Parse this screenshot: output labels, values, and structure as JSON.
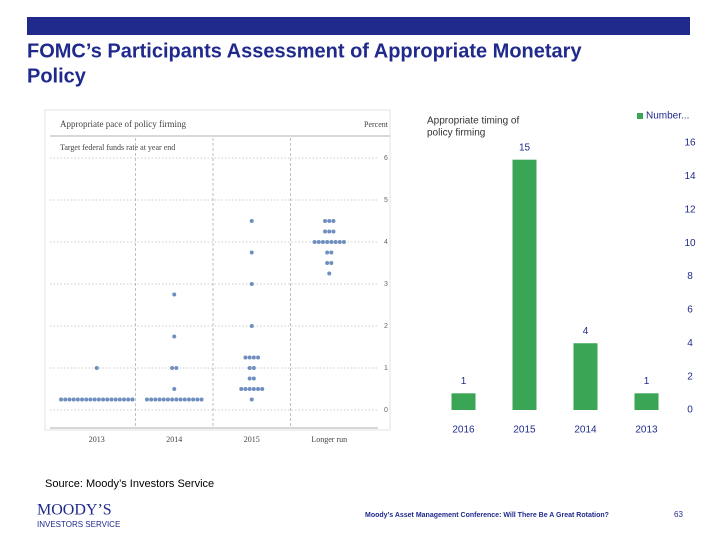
{
  "slide": {
    "title_line1": "FOMC’s Participants Assessment of Appropriate Monetary",
    "title_line2": "Policy",
    "source": "Source:  Moody’s Investors Service",
    "logo_line1": "MOODY’S",
    "logo_line2": "INVESTORS SERVICE",
    "footer": "Moody’s Asset Management Conference: Will There Be A Great Rotation?",
    "page": "63"
  },
  "chart_data": [
    {
      "type": "dot",
      "title": "Appropriate pace of policy firming",
      "subtitle": "Target federal funds rate at year end",
      "y_label": "Percent",
      "categories": [
        "2013",
        "2014",
        "2015",
        "Longer run"
      ],
      "color": "#6f8fc0",
      "values": [
        [
          0.25,
          0.25,
          0.25,
          0.25,
          0.25,
          0.25,
          0.25,
          0.25,
          0.25,
          0.25,
          0.25,
          0.25,
          0.25,
          0.25,
          0.25,
          0.25,
          0.25,
          0.25,
          1
        ],
        [
          0.25,
          0.25,
          0.25,
          0.25,
          0.25,
          0.25,
          0.25,
          0.25,
          0.25,
          0.25,
          0.25,
          0.25,
          0.25,
          0.25,
          0.5,
          1,
          1,
          1.75,
          2.75
        ],
        [
          0.25,
          0.5,
          0.5,
          0.5,
          0.5,
          0.5,
          0.5,
          0.75,
          0.75,
          1,
          1,
          1.25,
          1.25,
          1.25,
          1.25,
          2,
          3,
          3.75,
          4.5
        ],
        [
          3.25,
          3.5,
          3.5,
          3.75,
          3.75,
          4,
          4,
          4,
          4,
          4,
          4,
          4,
          4,
          4.25,
          4.25,
          4.25,
          4.5,
          4.5,
          4.5
        ]
      ],
      "ylim": [
        0,
        6
      ],
      "yticks": [
        0,
        1,
        2,
        3,
        4,
        5,
        6
      ],
      "grid": true
    },
    {
      "type": "bar",
      "title_line1": "Appropriate timing of",
      "title_line2": "policy firming",
      "legend": "Number...",
      "categories": [
        "2016",
        "2015",
        "2014",
        "2013"
      ],
      "values": [
        1,
        15,
        4,
        1
      ],
      "color": "#3aa655",
      "ylim": [
        0,
        16
      ],
      "yticks": [
        0,
        2,
        4,
        6,
        8,
        10,
        12,
        14,
        16
      ]
    }
  ]
}
